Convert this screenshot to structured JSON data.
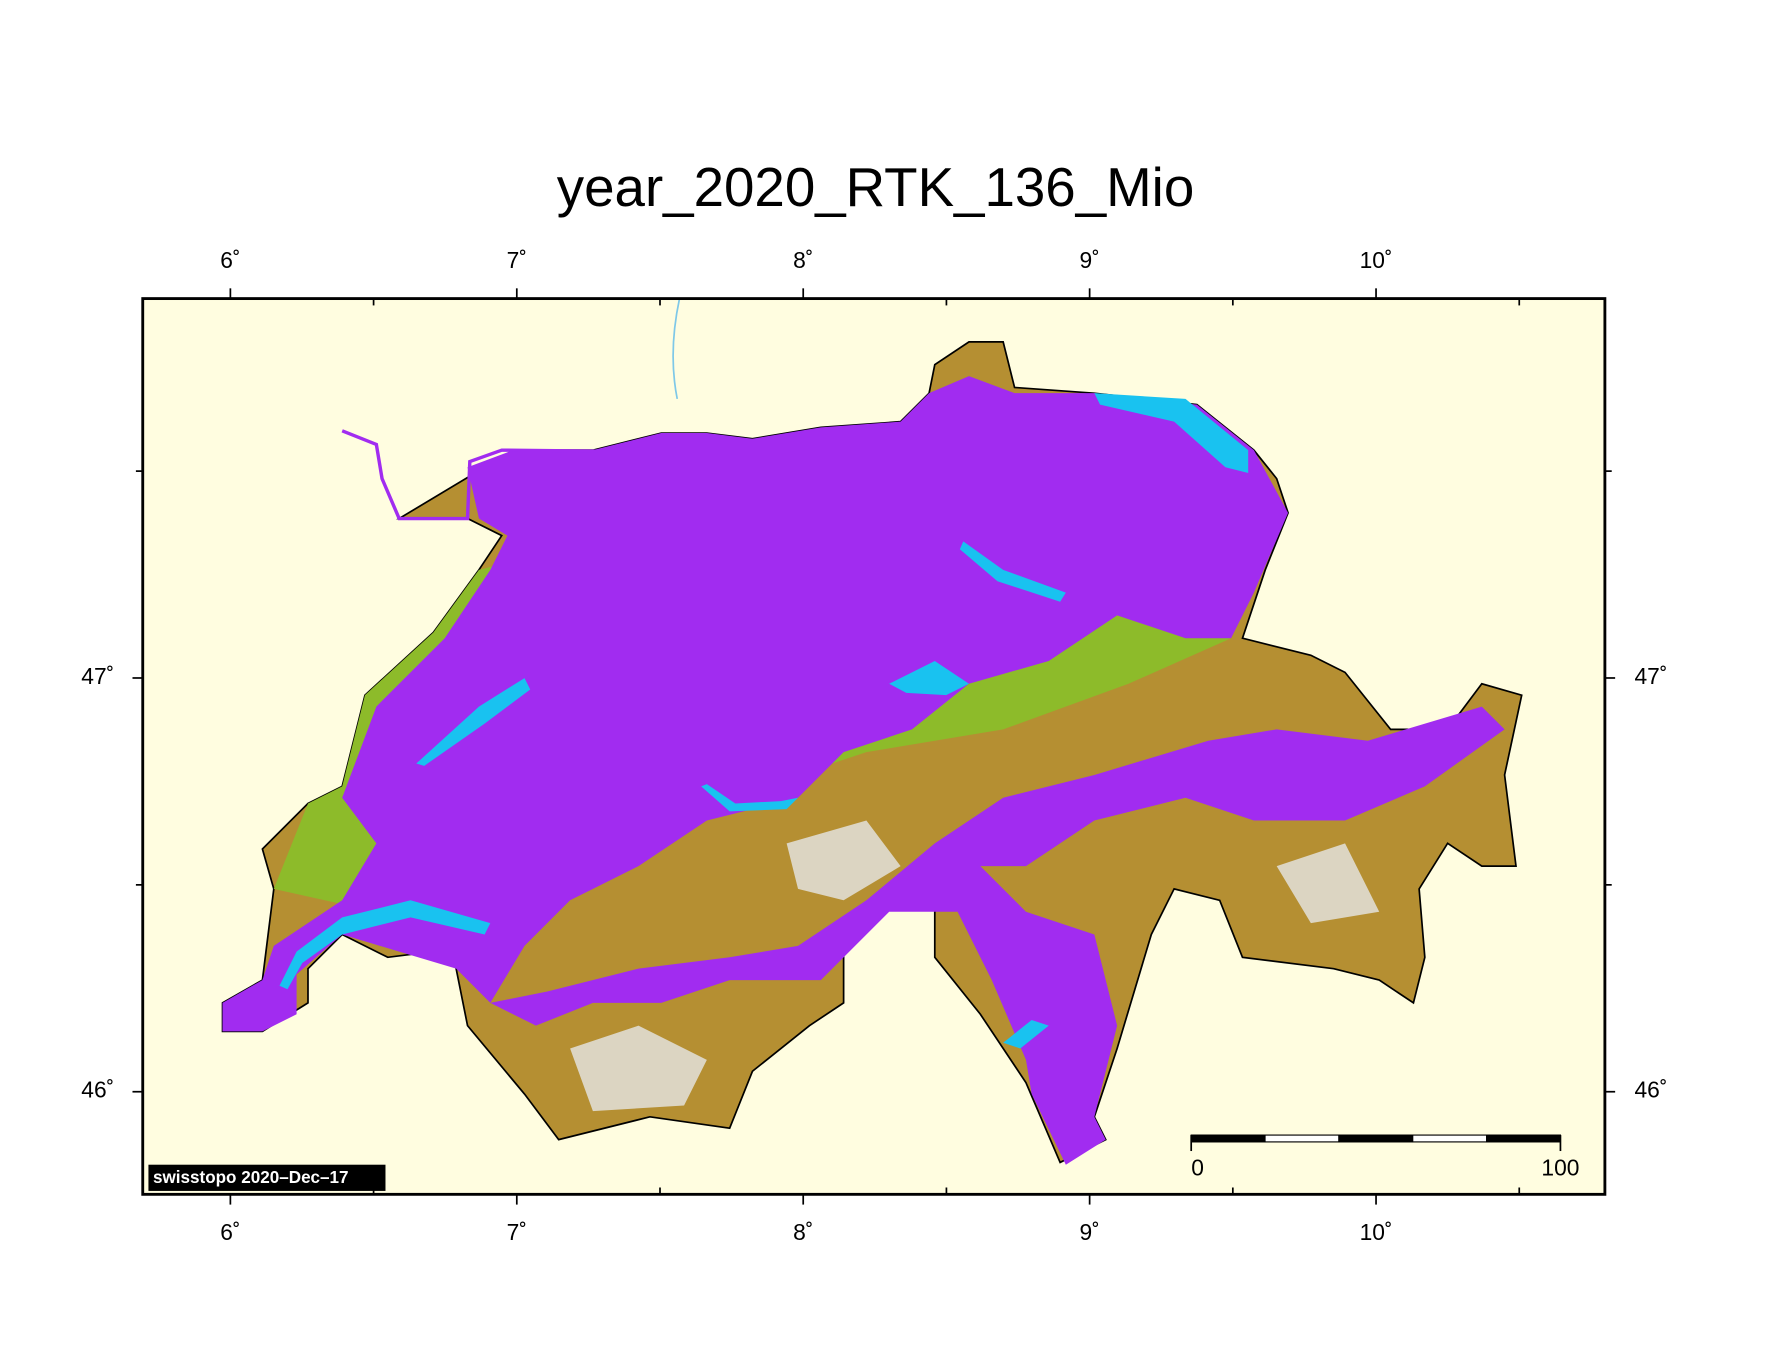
{
  "map": {
    "title": "year_2020_RTK_136_Mio",
    "lon_range": [
      5.694,
      10.799
    ],
    "lat_range": [
      45.752,
      47.917
    ],
    "lon_ticks": [
      {
        "value": 6,
        "label": "6˚"
      },
      {
        "value": 7,
        "label": "7˚"
      },
      {
        "value": 8,
        "label": "8˚"
      },
      {
        "value": 9,
        "label": "9˚"
      },
      {
        "value": 10,
        "label": "10˚"
      }
    ],
    "lat_ticks": [
      {
        "value": 46,
        "label": "46˚"
      },
      {
        "value": 47,
        "label": "47˚"
      }
    ],
    "lon_minor_ticks": [
      6.5,
      7.5,
      8.5,
      9.5,
      10.5
    ],
    "lat_minor_ticks": [
      46.5,
      47.5
    ],
    "scale_bar": {
      "range": [
        0,
        100
      ],
      "ticks": [
        0,
        100
      ]
    },
    "credit": "swisstopo 2020–Dec–17"
  }
}
